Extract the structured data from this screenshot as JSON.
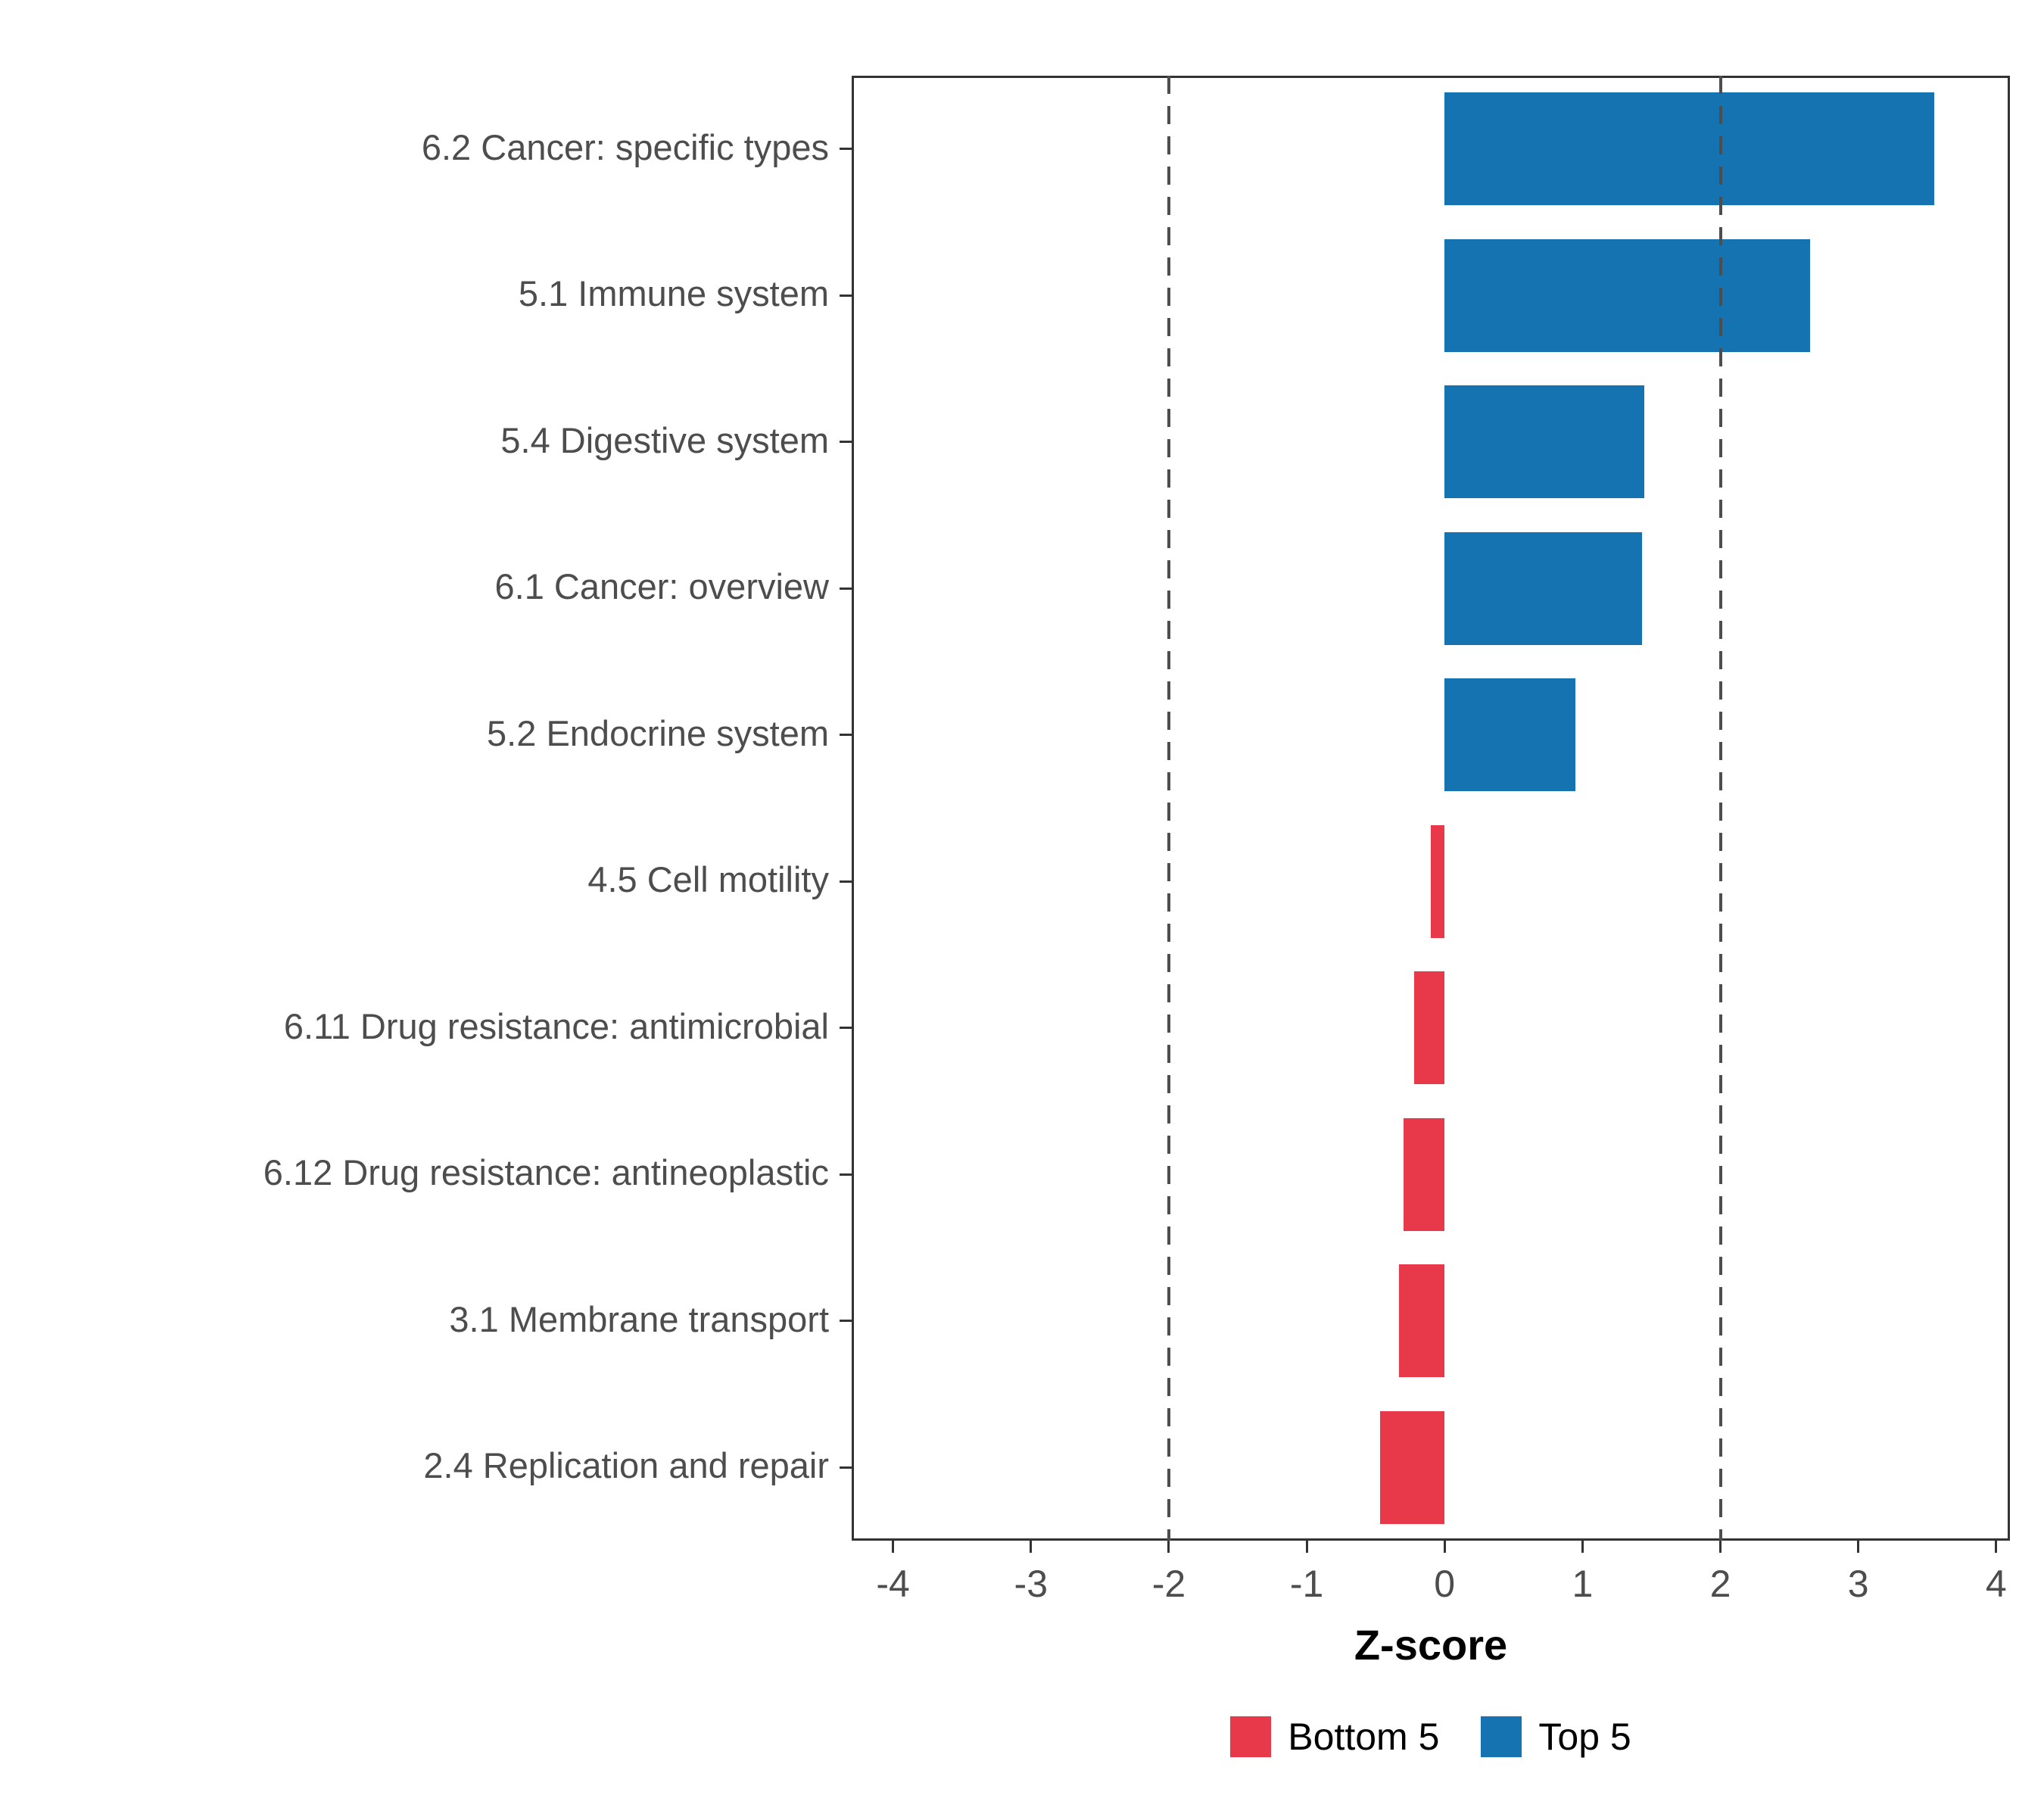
{
  "chart_data": {
    "type": "bar",
    "orientation": "horizontal",
    "title": "",
    "xlabel": "Z-score",
    "categories": [
      "6.2 Cancer: specific types",
      "5.1 Immune system",
      "5.4 Digestive system",
      "6.1 Cancer: overview",
      "5.2 Endocrine system",
      "4.5 Cell motility",
      "6.11 Drug resistance: antimicrobial",
      "6.12 Drug resistance: antineoplastic",
      "3.1 Membrane transport",
      "2.4 Replication and repair"
    ],
    "values": [
      3.55,
      2.65,
      1.45,
      1.43,
      0.95,
      -0.1,
      -0.22,
      -0.3,
      -0.33,
      -0.47
    ],
    "groups": [
      "Top 5",
      "Top 5",
      "Top 5",
      "Top 5",
      "Top 5",
      "Bottom 5",
      "Bottom 5",
      "Bottom 5",
      "Bottom 5",
      "Bottom 5"
    ],
    "colors": {
      "Top 5": "#1673B1",
      "Bottom 5": "#E8394A"
    },
    "xlim": [
      -4.3,
      4.1
    ],
    "xticks": [
      -4,
      -3,
      -2,
      -1,
      0,
      1,
      2,
      3,
      4
    ],
    "xtick_labels": [
      "-4",
      "-3",
      "-2",
      "-1",
      "0",
      "1",
      "2",
      "3",
      "4"
    ],
    "vlines": [
      -2,
      2
    ],
    "grid": false,
    "legend_position": "bottom",
    "legend": [
      {
        "label": "Bottom 5",
        "color": "#E8394A"
      },
      {
        "label": "Top 5",
        "color": "#1673B1"
      }
    ]
  }
}
